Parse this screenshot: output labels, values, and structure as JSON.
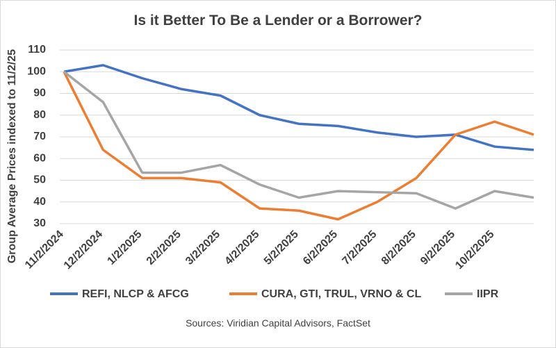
{
  "chart_data": {
    "type": "line",
    "title": "Is it Better To Be a Lender or a Borrower?",
    "y_label": "Group Average Prices indexed to 11/2/25",
    "source": "Sources: Viridian Capital Advisors, FactSet",
    "categories": [
      "11/2/2024",
      "12/2/2024",
      "1/2/2025",
      "2/2/2025",
      "3/2/2025",
      "4/2/2025",
      "5/2/2025",
      "6/2/2025",
      "7/2/2025",
      "8/2/2025",
      "9/2/2025",
      "10/2/2025",
      null
    ],
    "series": [
      {
        "name": "REFI, NLCP & AFCG",
        "color": "#4472c4",
        "values": [
          100,
          103,
          97,
          92,
          89,
          80,
          76,
          75,
          72,
          70,
          71,
          65.5,
          64
        ]
      },
      {
        "name": "CURA, GTI, TRUL, VRNO & CL",
        "color": "#ed7d31",
        "values": [
          100,
          64,
          51,
          51,
          49,
          37,
          36,
          32,
          40,
          51,
          71,
          77,
          71
        ]
      },
      {
        "name": "IIPR",
        "color": "#a5a5a5",
        "values": [
          100,
          86,
          53.5,
          53.5,
          57,
          48,
          42,
          45,
          44.5,
          44,
          37,
          45,
          42
        ]
      }
    ],
    "ylim": [
      30,
      110
    ],
    "yticks": [
      30,
      40,
      50,
      60,
      70,
      80,
      90,
      100,
      110
    ],
    "grid": true
  }
}
